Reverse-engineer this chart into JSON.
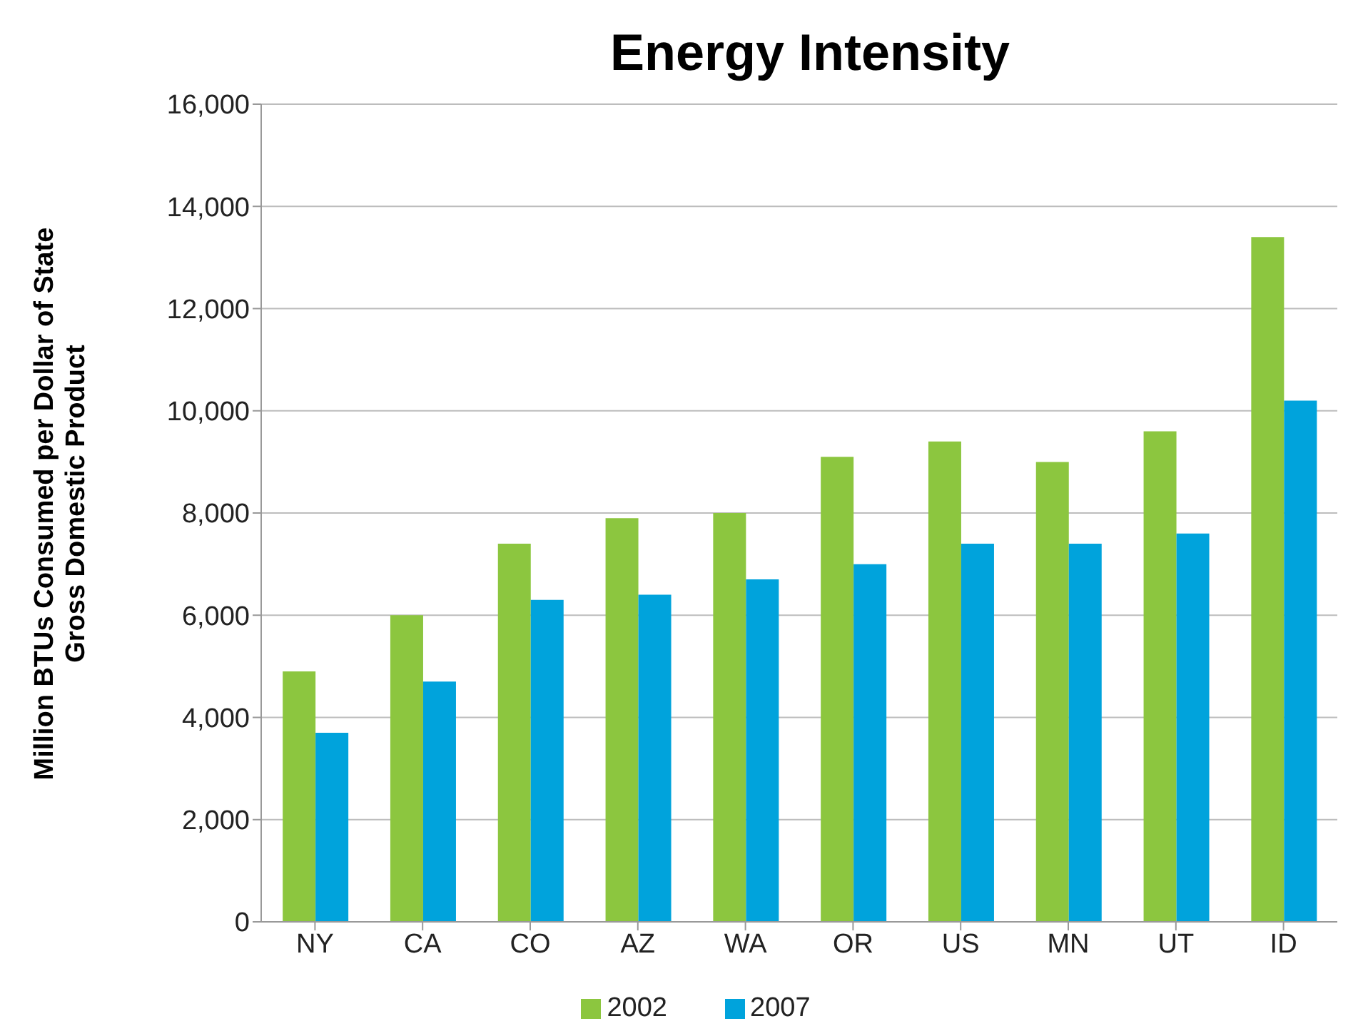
{
  "chart_data": {
    "type": "bar",
    "title": "Energy Intensity",
    "ylabel": "Million BTUs Consumed per Dollar of State Gross Domestic Product",
    "categories": [
      "NY",
      "CA",
      "CO",
      "AZ",
      "WA",
      "OR",
      "US",
      "MN",
      "UT",
      "ID"
    ],
    "series": [
      {
        "name": "2002",
        "color": "#8cc63f",
        "values": [
          4900,
          6000,
          7400,
          7900,
          8000,
          9100,
          9400,
          9000,
          9600,
          13400
        ]
      },
      {
        "name": "2007",
        "color": "#00a3dc",
        "values": [
          3700,
          4700,
          6300,
          6400,
          6700,
          7000,
          7400,
          7400,
          7600,
          10200
        ]
      }
    ],
    "ylim": [
      0,
      16000
    ],
    "yticks": [
      0,
      {
        "value": 2000,
        "label": "2,000"
      },
      {
        "value": 4000,
        "label": "4,000"
      },
      {
        "value": 6000,
        "label": "6,000"
      },
      {
        "value": 8000,
        "label": "8,000"
      },
      {
        "value": 10000,
        "label": "10,000"
      },
      {
        "value": 12000,
        "label": "12,000"
      },
      {
        "value": 14000,
        "label": "14,000"
      },
      {
        "value": 16000,
        "label": "16,000"
      }
    ],
    "grid": "y",
    "legend": "bottom"
  }
}
